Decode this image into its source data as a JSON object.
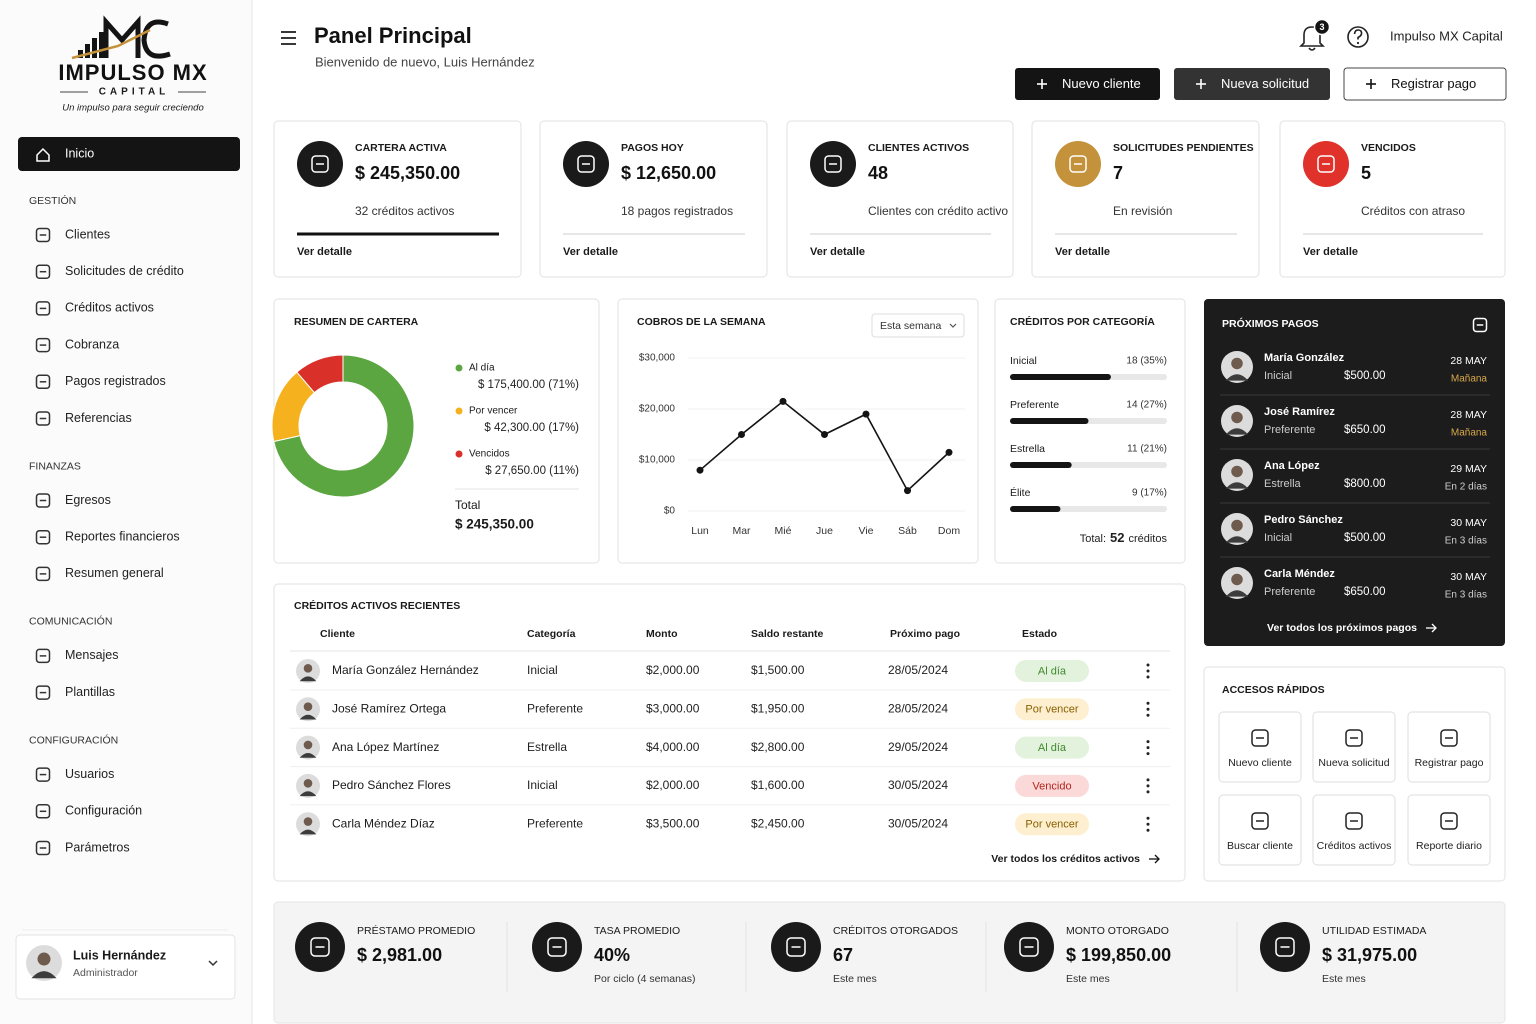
{
  "brand": {
    "name": "IMPULSO MX",
    "sub": "CAPITAL",
    "tagline": "Un impulso para seguir creciendo"
  },
  "sidebar": {
    "home": "Inicio",
    "sections": [
      {
        "title": "GESTIÓN",
        "items": [
          "Clientes",
          "Solicitudes de crédito",
          "Créditos activos",
          "Cobranza",
          "Pagos registrados",
          "Referencias"
        ]
      },
      {
        "title": "FINANZAS",
        "items": [
          "Egresos",
          "Reportes financieros",
          "Resumen general"
        ]
      },
      {
        "title": "COMUNICACIÓN",
        "items": [
          "Mensajes",
          "Plantillas"
        ]
      },
      {
        "title": "CONFIGURACIÓN",
        "items": [
          "Usuarios",
          "Configuración",
          "Parámetros"
        ]
      }
    ],
    "user": {
      "name": "Luis Hernández",
      "role": "Administrador"
    }
  },
  "header": {
    "title": "Panel Principal",
    "subtitle": "Bienvenido de nuevo, Luis Hernández",
    "notifications": 3,
    "company": "Impulso MX Capital",
    "buttons": [
      "Nuevo cliente",
      "Nueva solicitud",
      "Registrar pago"
    ]
  },
  "kpis": [
    {
      "label": "CARTERA ACTIVA",
      "value": "$ 245,350.00",
      "note": "32 créditos activos",
      "link": "Ver detalle",
      "color": "#1a1a1a"
    },
    {
      "label": "PAGOS HOY",
      "value": "$ 12,650.00",
      "note": "18 pagos registrados",
      "link": "Ver detalle",
      "color": "#1a1a1a"
    },
    {
      "label": "CLIENTES ACTIVOS",
      "value": "48",
      "note": "Clientes con crédito activo",
      "link": "Ver detalle",
      "color": "#1a1a1a"
    },
    {
      "label": "SOLICITUDES PENDIENTES",
      "value": "7",
      "note": "En revisión",
      "link": "Ver detalle",
      "color": "#c4923a"
    },
    {
      "label": "VENCIDOS",
      "value": "5",
      "note": "Créditos con atraso",
      "link": "Ver detalle",
      "color": "#e0312b"
    }
  ],
  "chart_data": [
    {
      "type": "pie",
      "title": "RESUMEN DE CARTERA",
      "categories": [
        "Al día",
        "Por vencer",
        "Vencidos"
      ],
      "values": [
        175400,
        42300,
        27650
      ],
      "value_labels": [
        "$ 175,400.00 (71%)",
        "$ 42,300.00 (17%)",
        "$ 27,650.00 (11%)"
      ],
      "colors": [
        "#5ba640",
        "#f5b21e",
        "#d9302a"
      ],
      "total_label": "Total",
      "total": "$ 245,350.00"
    },
    {
      "type": "line",
      "title": "COBROS DE LA SEMANA",
      "filter": "Esta semana",
      "categories": [
        "Lun",
        "Mar",
        "Mié",
        "Jue",
        "Vie",
        "Sáb",
        "Dom"
      ],
      "values": [
        8000,
        15000,
        21500,
        15000,
        19000,
        4000,
        11500
      ],
      "color": "#141414",
      "ylim": [
        0,
        30000
      ],
      "yticks": [
        {
          "value": 0,
          "label": "$0"
        },
        {
          "value": 10000,
          "label": "$10,000"
        },
        {
          "value": 20000,
          "label": "$20,000"
        },
        {
          "value": 30000,
          "label": "$30,000"
        }
      ]
    },
    {
      "type": "bar",
      "orientation": "horizontal",
      "title": "CRÉDITOS POR CATEGORÍA",
      "categories": [
        "Inicial",
        "Preferente",
        "Estrella",
        "Élite"
      ],
      "values": [
        18,
        14,
        11,
        9
      ],
      "value_labels": [
        "18 (35%)",
        "14 (27%)",
        "11 (21%)",
        "9 (17%)"
      ],
      "xlim": [
        0,
        28
      ],
      "color": "#141414",
      "total_label": "Total:",
      "total": 52,
      "total_unit": "créditos"
    }
  ],
  "upcoming": {
    "title": "PRÓXIMOS PAGOS",
    "items": [
      {
        "name": "María González",
        "category": "Inicial",
        "amount": "$500.00",
        "date": "28 MAY",
        "when": "Mañana",
        "when_color": "#d8a84a"
      },
      {
        "name": "José Ramírez",
        "category": "Preferente",
        "amount": "$650.00",
        "date": "28 MAY",
        "when": "Mañana",
        "when_color": "#d8a84a"
      },
      {
        "name": "Ana López",
        "category": "Estrella",
        "amount": "$800.00",
        "date": "29 MAY",
        "when": "En 2 días",
        "when_color": "#cfcfcf"
      },
      {
        "name": "Pedro Sánchez",
        "category": "Inicial",
        "amount": "$500.00",
        "date": "30 MAY",
        "when": "En 3 días",
        "when_color": "#cfcfcf"
      },
      {
        "name": "Carla Méndez",
        "category": "Preferente",
        "amount": "$650.00",
        "date": "30 MAY",
        "when": "En 3 días",
        "when_color": "#cfcfcf"
      }
    ],
    "link": "Ver todos los próximos pagos"
  },
  "table": {
    "title": "CRÉDITOS ACTIVOS RECIENTES",
    "columns": [
      "Cliente",
      "Categoría",
      "Monto",
      "Saldo restante",
      "Próximo pago",
      "Estado"
    ],
    "rows": [
      {
        "client": "María González Hernández",
        "category": "Inicial",
        "amount": "$2,000.00",
        "balance": "$1,500.00",
        "next_payment": "28/05/2024",
        "status": "Al día",
        "status_color": "#3f8a2d",
        "status_bg": "#e2f2dc"
      },
      {
        "client": "José Ramírez Ortega",
        "category": "Preferente",
        "amount": "$3,000.00",
        "balance": "$1,950.00",
        "next_payment": "28/05/2024",
        "status": "Por vencer",
        "status_color": "#8a5f00",
        "status_bg": "#fdefcf"
      },
      {
        "client": "Ana López Martínez",
        "category": "Estrella",
        "amount": "$4,000.00",
        "balance": "$2,800.00",
        "next_payment": "29/05/2024",
        "status": "Al día",
        "status_color": "#3f8a2d",
        "status_bg": "#e2f2dc"
      },
      {
        "client": "Pedro Sánchez Flores",
        "category": "Inicial",
        "amount": "$2,000.00",
        "balance": "$1,600.00",
        "next_payment": "30/05/2024",
        "status": "Vencido",
        "status_color": "#b3261e",
        "status_bg": "#fbd9d9"
      },
      {
        "client": "Carla Méndez Díaz",
        "category": "Preferente",
        "amount": "$3,500.00",
        "balance": "$2,450.00",
        "next_payment": "30/05/2024",
        "status": "Por vencer",
        "status_color": "#8a5f00",
        "status_bg": "#fdefcf"
      }
    ],
    "link": "Ver todos los créditos activos"
  },
  "quick_access": {
    "title": "ACCESOS RÁPIDOS",
    "items": [
      "Nuevo cliente",
      "Nueva solicitud",
      "Registrar pago",
      "Buscar cliente",
      "Créditos activos",
      "Reporte diario"
    ]
  },
  "stats": [
    {
      "label": "PRÉSTAMO PROMEDIO",
      "value": "$ 2,981.00"
    },
    {
      "label": "TASA PROMEDIO",
      "value": "40%",
      "note": "Por ciclo (4 semanas)"
    },
    {
      "label": "CRÉDITOS OTORGADOS",
      "value": "67",
      "note": "Este mes"
    },
    {
      "label": "MONTO OTORGADO",
      "value": "$ 199,850.00",
      "note": "Este mes"
    },
    {
      "label": "UTILIDAD ESTIMADA",
      "value": "$ 31,975.00",
      "note": "Este mes"
    }
  ]
}
